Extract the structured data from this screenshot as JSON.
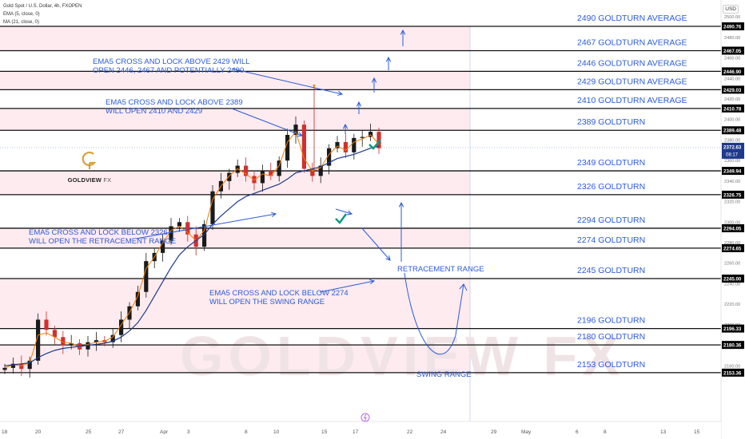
{
  "legend": {
    "symbol": "Gold Spot / U.S. Dollar, 4h, FXOPEN",
    "ema": "EMA (5, close, 0)",
    "ma": "MA (21, close, 0)"
  },
  "currency": "USD",
  "brand": {
    "name": "GOLDVIEW",
    "suffix": "FX",
    "watermark": "GOLDVIEW FX"
  },
  "chart_data": {
    "type": "candlestick",
    "instrument": "Gold Spot / U.S. Dollar",
    "timeframe": "4h",
    "ylim": [
      2150,
      2500
    ],
    "current_price": "2372.63",
    "countdown": "08:17",
    "x_ticks": [
      "18",
      "20",
      "25",
      "27",
      "Apr",
      "3",
      "8",
      "10",
      "15",
      "17",
      "22",
      "24",
      "29",
      "May",
      "6",
      "8",
      "13",
      "15"
    ],
    "y_ticks": [
      "2500.00",
      "2480.00",
      "2460.00",
      "2440.00",
      "2420.00",
      "2400.00",
      "2380.00",
      "2360.00",
      "2340.00",
      "2320.00",
      "2300.00",
      "2280.00",
      "2260.00",
      "2240.00",
      "2220.00",
      "2200.00",
      "2180.00",
      "2160.00"
    ],
    "levels": [
      {
        "value": 2490.76,
        "price": "2490.76",
        "label": "2490 GOLDTURN AVERAGE"
      },
      {
        "value": 2467.05,
        "price": "2467.05",
        "label": "2467 GOLDTURN AVERAGE"
      },
      {
        "value": 2446.9,
        "price": "2446.90",
        "label": "2446 GOLDTURN AVERAGE"
      },
      {
        "value": 2429.03,
        "price": "2429.03",
        "label": "2429 GOLDTURN AVERAGE"
      },
      {
        "value": 2410.78,
        "price": "2410.78",
        "label": "2410 GOLDTURN AVERAGE"
      },
      {
        "value": 2389.48,
        "price": "2389.48",
        "label": "2389 GOLDTURN"
      },
      {
        "value": 2349.94,
        "price": "2349.94",
        "label": "2349 GOLDTURN"
      },
      {
        "value": 2326.75,
        "price": "2326.75",
        "label": "2326 GOLDTURN"
      },
      {
        "value": 2294.05,
        "price": "2294.05",
        "label": "2294 GOLDTURN"
      },
      {
        "value": 2274.65,
        "price": "2274.65",
        "label": "2274 GOLDTURN"
      },
      {
        "value": 2245.0,
        "price": "2245.00",
        "label": "2245 GOLDTURN"
      },
      {
        "value": 2196.33,
        "price": "2196.33",
        "label": "2196 GOLDTURN"
      },
      {
        "value": 2180.36,
        "price": "2180.36",
        "label": "2180 GOLDTURN"
      },
      {
        "value": 2153.36,
        "price": "2153.36",
        "label": "2153 GOLDTURN"
      }
    ],
    "annotations": [
      {
        "lines": [
          "EMA5 CROSS AND LOCK ABOVE 2429 WILL",
          "OPEN 2446, 2467 AND POTENTIALLY 2490"
        ]
      },
      {
        "lines": [
          "EMA5 CROSS AND LOCK ABOVE 2389",
          "WILL OPEN 2410 AND 2429"
        ]
      },
      {
        "lines": [
          "EMA5 CROSS AND LOCK BELOW 2326",
          "WILL  OPEN THE RETRACEMENT RANGE"
        ]
      },
      {
        "lines": [
          "EMA5 CROSS AND LOCK BELOW 2274",
          "WILL  OPEN THE SWING RANGE"
        ]
      },
      {
        "lines": [
          "RETRACEMENT RANGE"
        ]
      },
      {
        "lines": [
          "SWING RANGE"
        ]
      }
    ],
    "close_path": [
      2158,
      2162,
      2157,
      2165,
      2205,
      2195,
      2188,
      2180,
      2182,
      2176,
      2183,
      2185,
      2183,
      2190,
      2205,
      2218,
      2232,
      2262,
      2270,
      2282,
      2296,
      2300,
      2288,
      2276,
      2298,
      2330,
      2340,
      2348,
      2355,
      2345,
      2338,
      2350,
      2345,
      2360,
      2385,
      2395,
      2352,
      2345,
      2355,
      2372,
      2378,
      2368,
      2382,
      2383,
      2388,
      2372
    ],
    "ema5_path": [
      2158,
      2161,
      2160,
      2163,
      2190,
      2192,
      2188,
      2183,
      2182,
      2178,
      2181,
      2183,
      2184,
      2188,
      2200,
      2212,
      2228,
      2255,
      2266,
      2280,
      2292,
      2296,
      2290,
      2282,
      2292,
      2322,
      2335,
      2345,
      2352,
      2347,
      2341,
      2347,
      2345,
      2355,
      2378,
      2388,
      2362,
      2350,
      2353,
      2366,
      2374,
      2370,
      2378,
      2381,
      2385,
      2376
    ],
    "ma21_path": [
      2160,
      2161,
      2162,
      2163,
      2168,
      2172,
      2175,
      2177,
      2178,
      2179,
      2180,
      2181,
      2182,
      2184,
      2188,
      2194,
      2202,
      2214,
      2228,
      2242,
      2256,
      2268,
      2276,
      2282,
      2288,
      2298,
      2306,
      2313,
      2320,
      2325,
      2328,
      2331,
      2334,
      2337,
      2342,
      2348,
      2350,
      2352,
      2354,
      2358,
      2362,
      2364,
      2366,
      2369,
      2372,
      2374
    ]
  }
}
